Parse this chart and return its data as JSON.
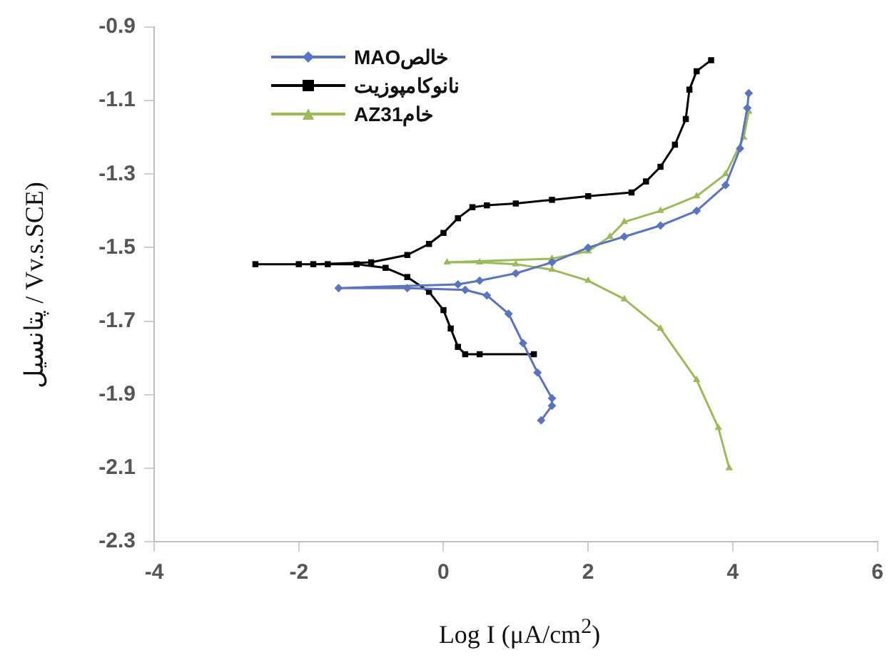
{
  "chart_data": {
    "type": "line",
    "xlabel": "Log I (μA/cm$^{2}$)",
    "ylabel": "پتانسیل / Vv.s.SCE)",
    "xlim": [
      -4,
      6
    ],
    "xticks": [
      -4,
      -2,
      0,
      2,
      4,
      6
    ],
    "ylim": [
      -2.3,
      -0.9
    ],
    "yticks": [
      -2.3,
      -2.1,
      -1.9,
      -1.7,
      -1.5,
      -1.3,
      -1.1,
      -0.9
    ],
    "grid": false,
    "legend": "top left",
    "line_style": "solid",
    "series": [
      {
        "name": "خالصMAO",
        "color": "#5b74c0",
        "marker": "diamond",
        "x": [
          1.35,
          1.5,
          1.5,
          1.3,
          1.1,
          0.9,
          0.6,
          0.3,
          -0.5,
          -1.45,
          0.2,
          0.5,
          1.0,
          1.5,
          2.0,
          2.5,
          3.0,
          3.5,
          3.9,
          4.1,
          4.2,
          4.22
        ],
        "values": [
          -1.97,
          -1.93,
          -1.91,
          -1.84,
          -1.76,
          -1.68,
          -1.63,
          -1.615,
          -1.61,
          -1.61,
          -1.6,
          -1.59,
          -1.57,
          -1.54,
          -1.5,
          -1.47,
          -1.44,
          -1.4,
          -1.33,
          -1.23,
          -1.12,
          -1.08
        ]
      },
      {
        "name": "نانوکامپوزیت",
        "color": "#000000",
        "marker": "square",
        "x": [
          1.25,
          0.5,
          0.3,
          0.2,
          0.1,
          0,
          -0.2,
          -0.5,
          -0.8,
          -1.2,
          -1.6,
          -2.0,
          -2.6,
          -1.8,
          -1.0,
          -0.5,
          -0.2,
          0,
          0.2,
          0.4,
          0.6,
          1.0,
          1.5,
          2.0,
          2.6,
          2.8,
          3.0,
          3.2,
          3.35,
          3.4,
          3.5,
          3.7
        ],
        "values": [
          -1.79,
          -1.79,
          -1.79,
          -1.77,
          -1.72,
          -1.67,
          -1.62,
          -1.58,
          -1.555,
          -1.545,
          -1.545,
          -1.545,
          -1.545,
          -1.545,
          -1.54,
          -1.52,
          -1.49,
          -1.46,
          -1.42,
          -1.39,
          -1.385,
          -1.38,
          -1.37,
          -1.36,
          -1.35,
          -1.32,
          -1.28,
          -1.22,
          -1.15,
          -1.07,
          -1.02,
          -0.99
        ]
      },
      {
        "name": "خامAZ31",
        "color": "#9bbb59",
        "marker": "triangle",
        "x": [
          3.95,
          3.8,
          3.5,
          3.0,
          2.5,
          2.0,
          1.5,
          1.0,
          0.5,
          0.05,
          1.5,
          2.0,
          2.3,
          2.5,
          3.0,
          3.5,
          3.9,
          4.15,
          4.22
        ],
        "values": [
          -2.1,
          -1.99,
          -1.86,
          -1.72,
          -1.64,
          -1.59,
          -1.56,
          -1.545,
          -1.54,
          -1.54,
          -1.53,
          -1.51,
          -1.47,
          -1.43,
          -1.4,
          -1.36,
          -1.3,
          -1.2,
          -1.13
        ]
      }
    ]
  }
}
